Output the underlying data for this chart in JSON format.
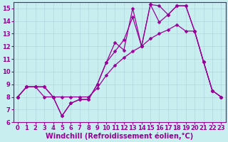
{
  "xlabel": "Windchill (Refroidissement éolien,°C)",
  "bg_color": "#c8eef0",
  "line_color": "#990099",
  "grid_color": "#b0d8dc",
  "xlim": [
    -0.5,
    23.5
  ],
  "ylim": [
    6,
    15.5
  ],
  "xticks": [
    0,
    1,
    2,
    3,
    4,
    5,
    6,
    7,
    8,
    9,
    10,
    11,
    12,
    13,
    14,
    15,
    16,
    17,
    18,
    19,
    20,
    21,
    22,
    23
  ],
  "yticks": [
    6,
    7,
    8,
    9,
    10,
    11,
    12,
    13,
    14,
    15
  ],
  "series1_x": [
    0,
    1,
    2,
    3,
    4,
    5,
    6,
    7,
    8,
    9,
    10,
    11,
    12,
    13,
    14,
    15,
    16,
    17,
    18,
    19,
    20,
    21,
    22,
    23
  ],
  "series1_y": [
    8.0,
    8.8,
    8.8,
    8.8,
    8.0,
    6.5,
    7.5,
    7.8,
    7.8,
    9.0,
    10.7,
    11.6,
    12.5,
    14.3,
    12.0,
    15.3,
    13.9,
    14.5,
    15.2,
    15.2,
    13.2,
    10.8,
    8.5,
    8.0
  ],
  "series2_x": [
    0,
    1,
    2,
    3,
    4,
    5,
    6,
    7,
    8,
    9,
    10,
    11,
    12,
    13,
    14,
    15,
    16,
    17,
    18,
    19,
    20,
    21,
    22,
    23
  ],
  "series2_y": [
    8.0,
    8.8,
    8.8,
    8.8,
    8.0,
    6.5,
    7.5,
    7.8,
    7.8,
    9.0,
    10.7,
    12.3,
    11.7,
    15.0,
    12.0,
    15.3,
    15.2,
    14.5,
    15.2,
    15.2,
    13.2,
    10.8,
    8.5,
    8.0
  ],
  "series3_x": [
    0,
    1,
    2,
    3,
    4,
    5,
    6,
    7,
    8,
    9,
    10,
    11,
    12,
    13,
    14,
    15,
    16,
    17,
    18,
    19,
    20,
    21,
    22,
    23
  ],
  "series3_y": [
    8.0,
    8.8,
    8.8,
    8.0,
    8.0,
    8.0,
    8.0,
    8.0,
    8.0,
    8.7,
    9.7,
    10.5,
    11.1,
    11.6,
    12.0,
    12.6,
    13.0,
    13.3,
    13.7,
    13.2,
    13.2,
    10.8,
    8.5,
    8.0
  ],
  "xlabel_fontsize": 7,
  "tick_fontsize": 6,
  "marker_size": 2.5,
  "linewidth": 0.9
}
